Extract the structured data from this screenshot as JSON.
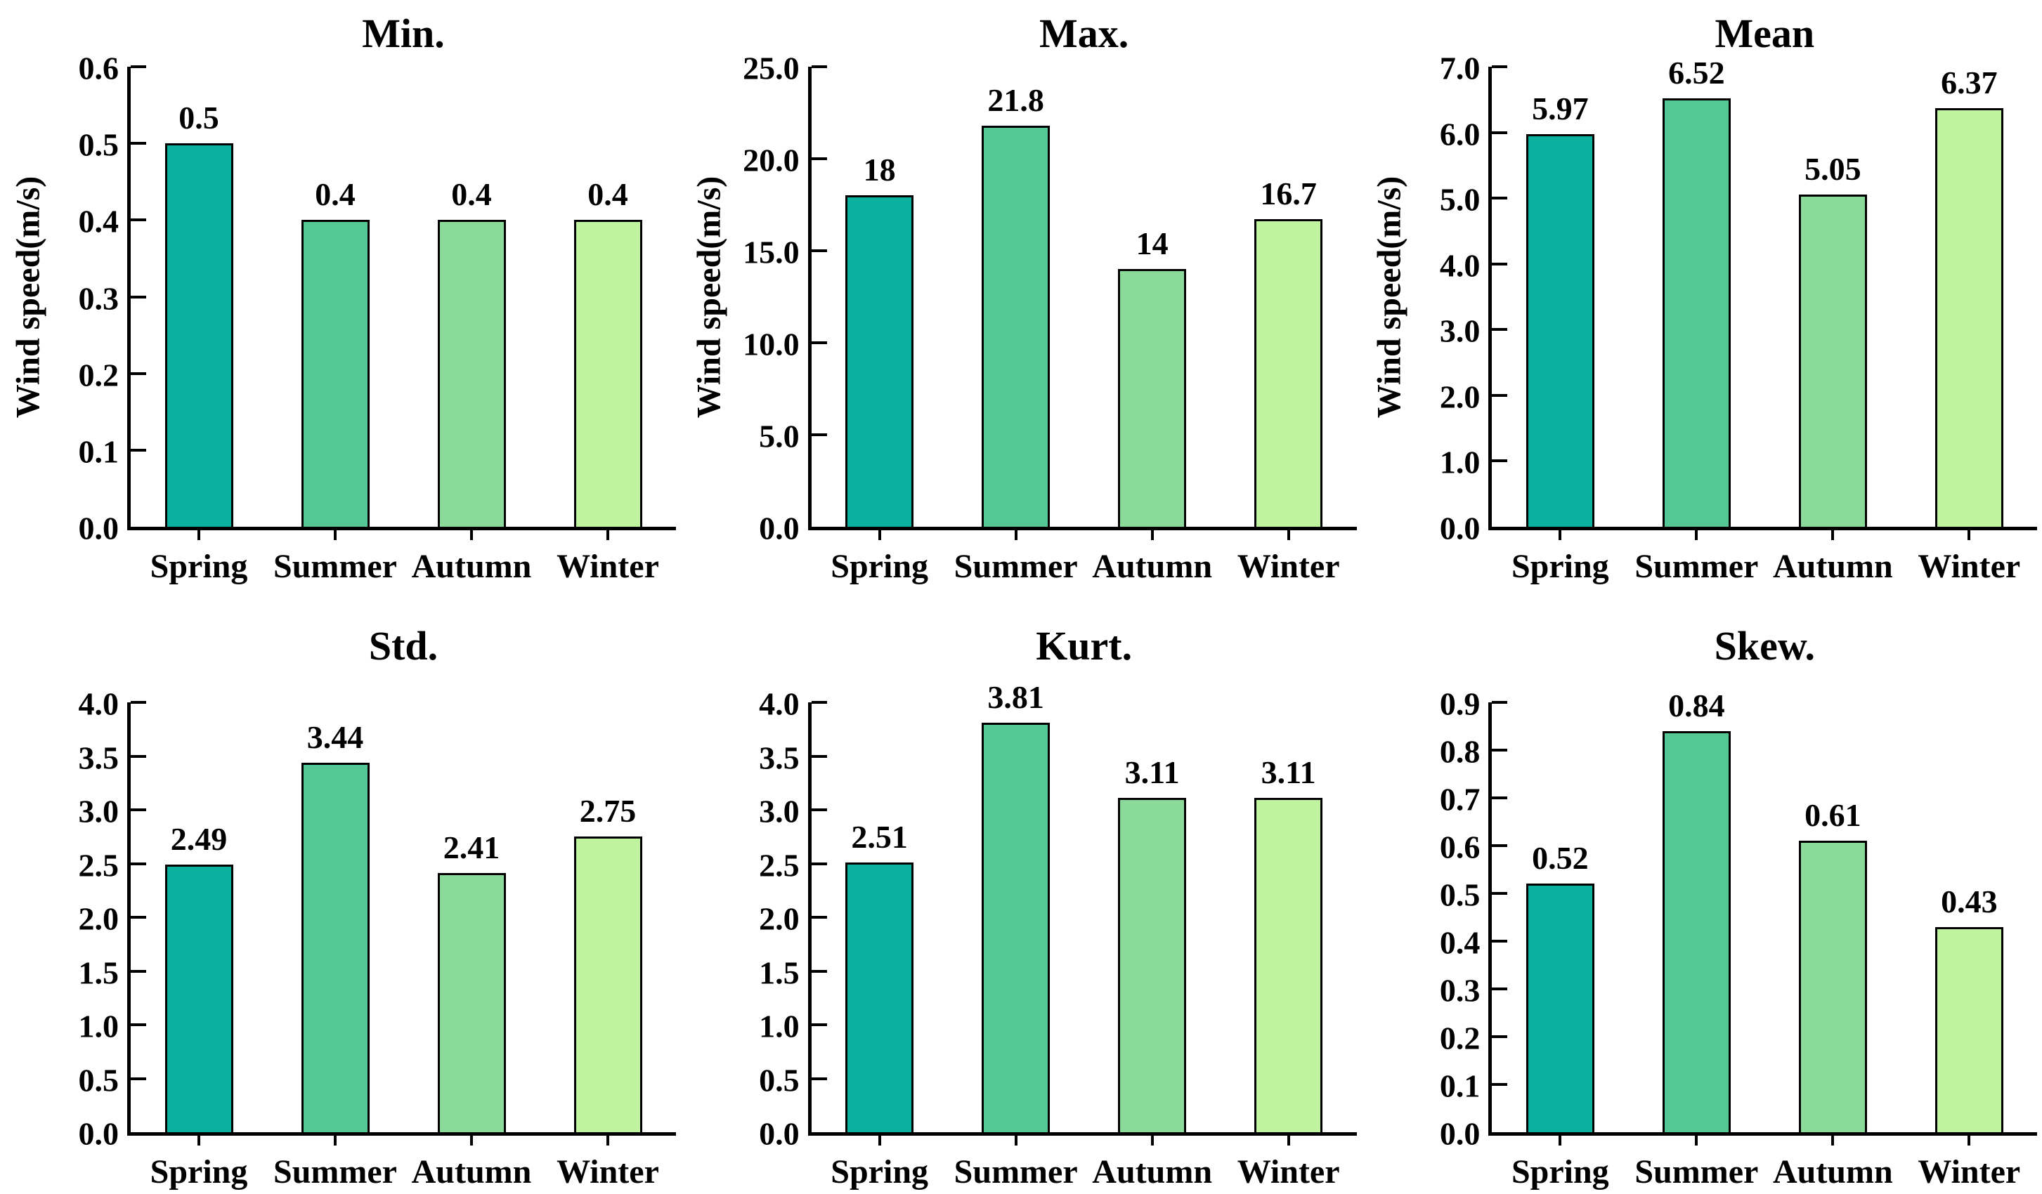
{
  "figure": {
    "background": "#ffffff",
    "axis_color": "#000000",
    "text_color": "#000000"
  },
  "categories": [
    "Spring",
    "Summer",
    "Autumn",
    "Winter"
  ],
  "bar_colors": [
    "#09b19e",
    "#54c795",
    "#8adb99",
    "#c0f39d"
  ],
  "chart_data": [
    {
      "id": "min",
      "type": "bar",
      "title": "Min.",
      "ylabel": "Wind speed(m/s)",
      "categories": [
        "Spring",
        "Summer",
        "Autumn",
        "Winter"
      ],
      "values": [
        0.5,
        0.4,
        0.4,
        0.4
      ],
      "value_labels": [
        "0.5",
        "0.4",
        "0.4",
        "0.4"
      ],
      "ylim": [
        0,
        0.6
      ],
      "ytick_step": 0.1,
      "grid": false,
      "legend": "none"
    },
    {
      "id": "max",
      "type": "bar",
      "title": "Max.",
      "ylabel": "Wind speed(m/s)",
      "categories": [
        "Spring",
        "Summer",
        "Autumn",
        "Winter"
      ],
      "values": [
        18,
        21.8,
        14,
        16.7
      ],
      "value_labels": [
        "18",
        "21.8",
        "14",
        "16.7"
      ],
      "ylim": [
        0,
        25
      ],
      "ytick_step": 5,
      "grid": false,
      "legend": "none"
    },
    {
      "id": "mean",
      "type": "bar",
      "title": "Mean",
      "ylabel": "Wind speed(m/s)",
      "categories": [
        "Spring",
        "Summer",
        "Autumn",
        "Winter"
      ],
      "values": [
        5.97,
        6.52,
        5.05,
        6.37
      ],
      "value_labels": [
        "5.97",
        "6.52",
        "5.05",
        "6.37"
      ],
      "ylim": [
        0,
        7
      ],
      "ytick_step": 1,
      "grid": false,
      "legend": "none"
    },
    {
      "id": "std",
      "type": "bar",
      "title": "Std.",
      "ylabel": null,
      "categories": [
        "Spring",
        "Summer",
        "Autumn",
        "Winter"
      ],
      "values": [
        2.49,
        3.44,
        2.41,
        2.75
      ],
      "value_labels": [
        "2.49",
        "3.44",
        "2.41",
        "2.75"
      ],
      "ylim": [
        0,
        4
      ],
      "ytick_step": 0.5,
      "grid": false,
      "legend": "none"
    },
    {
      "id": "kurt",
      "type": "bar",
      "title": "Kurt.",
      "ylabel": null,
      "categories": [
        "Spring",
        "Summer",
        "Autumn",
        "Winter"
      ],
      "values": [
        2.51,
        3.81,
        3.11,
        3.11
      ],
      "value_labels": [
        "2.51",
        "3.81",
        "3.11",
        "3.11"
      ],
      "ylim": [
        0,
        4
      ],
      "ytick_step": 0.5,
      "grid": false,
      "legend": "none"
    },
    {
      "id": "skew",
      "type": "bar",
      "title": "Skew.",
      "ylabel": null,
      "categories": [
        "Spring",
        "Summer",
        "Autumn",
        "Winter"
      ],
      "values": [
        0.52,
        0.84,
        0.61,
        0.43
      ],
      "value_labels": [
        "0.52",
        "0.84",
        "0.61",
        "0.43"
      ],
      "ylim": [
        0,
        0.9
      ],
      "ytick_step": 0.1,
      "grid": false,
      "legend": "none"
    }
  ]
}
